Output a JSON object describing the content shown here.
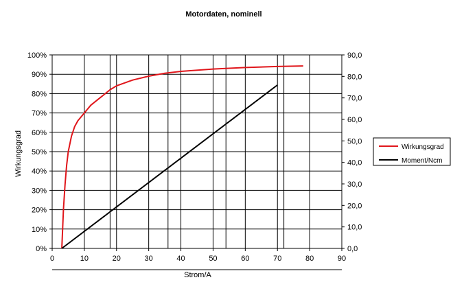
{
  "chart_data": {
    "type": "line",
    "title": "Motordaten, nominell",
    "xlabel": "Strom/A",
    "ylabel": "Wirkungsgrad",
    "y2label": "",
    "xlim": [
      0,
      90
    ],
    "ylim": [
      0,
      1
    ],
    "y2lim": [
      0,
      90
    ],
    "x_ticks": [
      "0",
      "10",
      "20",
      "30",
      "40",
      "50",
      "60",
      "70",
      "80",
      "90"
    ],
    "y_ticks": [
      "0%",
      "10%",
      "20%",
      "30%",
      "40%",
      "50%",
      "60%",
      "70%",
      "80%",
      "90%",
      "100%"
    ],
    "y2_ticks": [
      "0,0",
      "10,0",
      "20,0",
      "30,0",
      "40,0",
      "50,0",
      "60,0",
      "70,0",
      "80,0",
      "90,0"
    ],
    "grid": "vertical lines at x = 10, 18, 20, 30, 36, 40, 50, 54, 60, 70, 72, 80 plus horizontal lines at every y tick",
    "legend_position": "right",
    "series": [
      {
        "name": "Wirkungsgrad",
        "axis": "left",
        "color": "#e0161b",
        "x": [
          3,
          3.5,
          4,
          4.5,
          5,
          6,
          7,
          8,
          10,
          12,
          15,
          18,
          20,
          25,
          30,
          35,
          40,
          50,
          60,
          70,
          78
        ],
        "y": [
          0.0,
          0.2,
          0.33,
          0.43,
          0.5,
          0.58,
          0.63,
          0.66,
          0.7,
          0.74,
          0.78,
          0.82,
          0.84,
          0.87,
          0.89,
          0.905,
          0.915,
          0.927,
          0.935,
          0.94,
          0.943
        ]
      },
      {
        "name": "Moment/Ncm",
        "axis": "right",
        "color": "#000000",
        "x": [
          3,
          70
        ],
        "y": [
          0,
          76
        ]
      }
    ]
  }
}
